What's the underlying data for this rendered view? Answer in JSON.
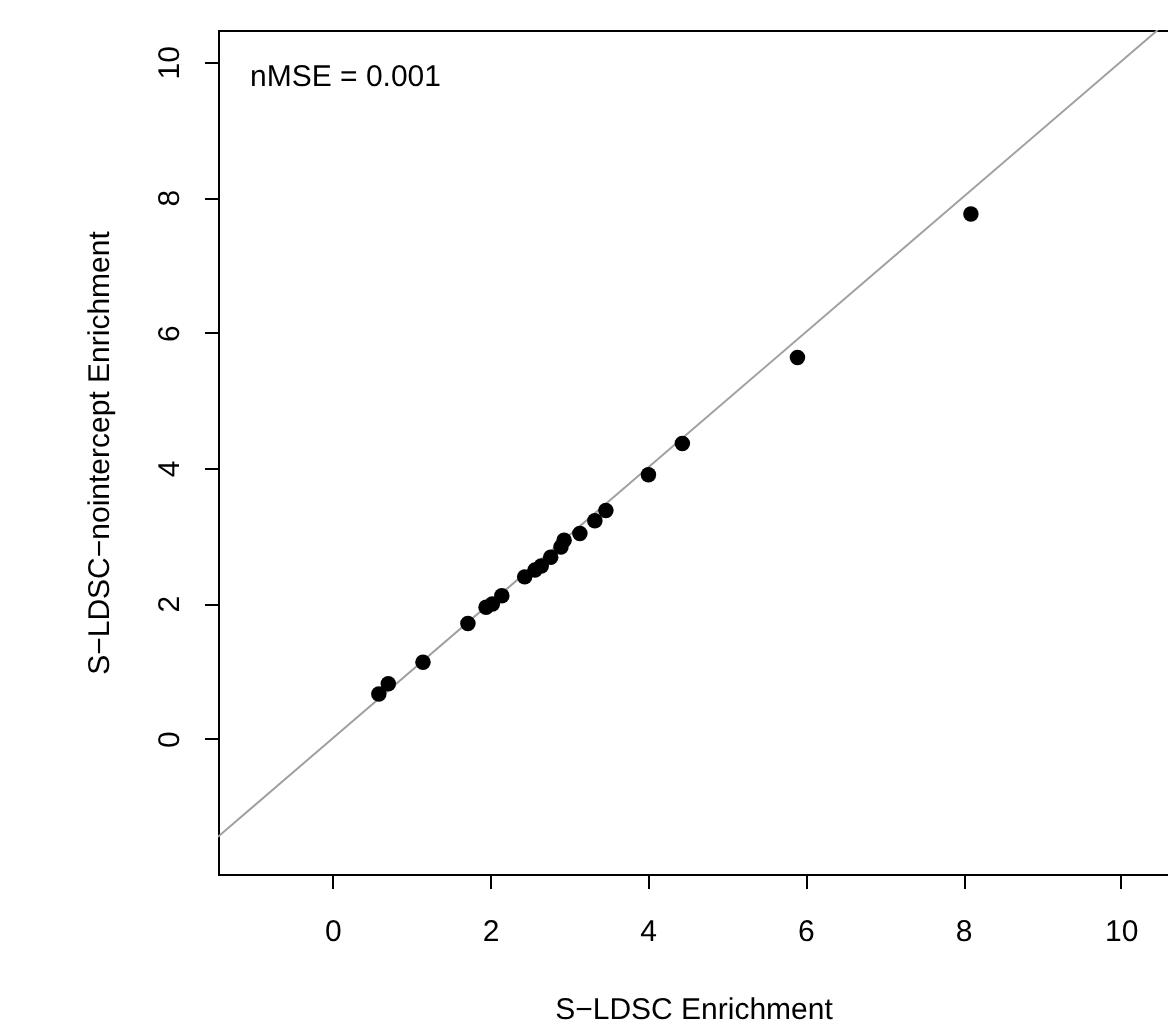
{
  "chart_data": {
    "type": "scatter",
    "xlabel": "S−LDSC Enrichment",
    "ylabel": "S−LDSC−nointercept Enrichment",
    "xlim": [
      -1.45,
      10.6
    ],
    "ylim": [
      -2.0,
      10.47
    ],
    "xticks": [
      0,
      2,
      4,
      6,
      8,
      10
    ],
    "yticks": [
      0,
      2,
      4,
      6,
      8,
      10
    ],
    "marker": "circle",
    "annotations": [
      "nMSE = 0.001"
    ],
    "series": [
      {
        "color": "#000000",
        "x": [
          0.59,
          0.71,
          1.15,
          1.72,
          1.95,
          2.03,
          2.15,
          2.44,
          2.57,
          2.65,
          2.77,
          2.9,
          2.94,
          3.14,
          3.33,
          3.47,
          4.01,
          4.44,
          5.9,
          8.1
        ],
        "values": [
          0.66,
          0.81,
          1.13,
          1.7,
          1.94,
          1.99,
          2.11,
          2.39,
          2.49,
          2.55,
          2.68,
          2.83,
          2.93,
          3.03,
          3.22,
          3.37,
          3.9,
          4.36,
          5.63,
          7.75
        ]
      },
      {
        "type": "line",
        "color": "#a0a0a0",
        "line_style": "solid",
        "marker": "none",
        "x": [
          -1.45,
          10.47
        ],
        "values": [
          -1.45,
          10.47
        ]
      }
    ]
  }
}
